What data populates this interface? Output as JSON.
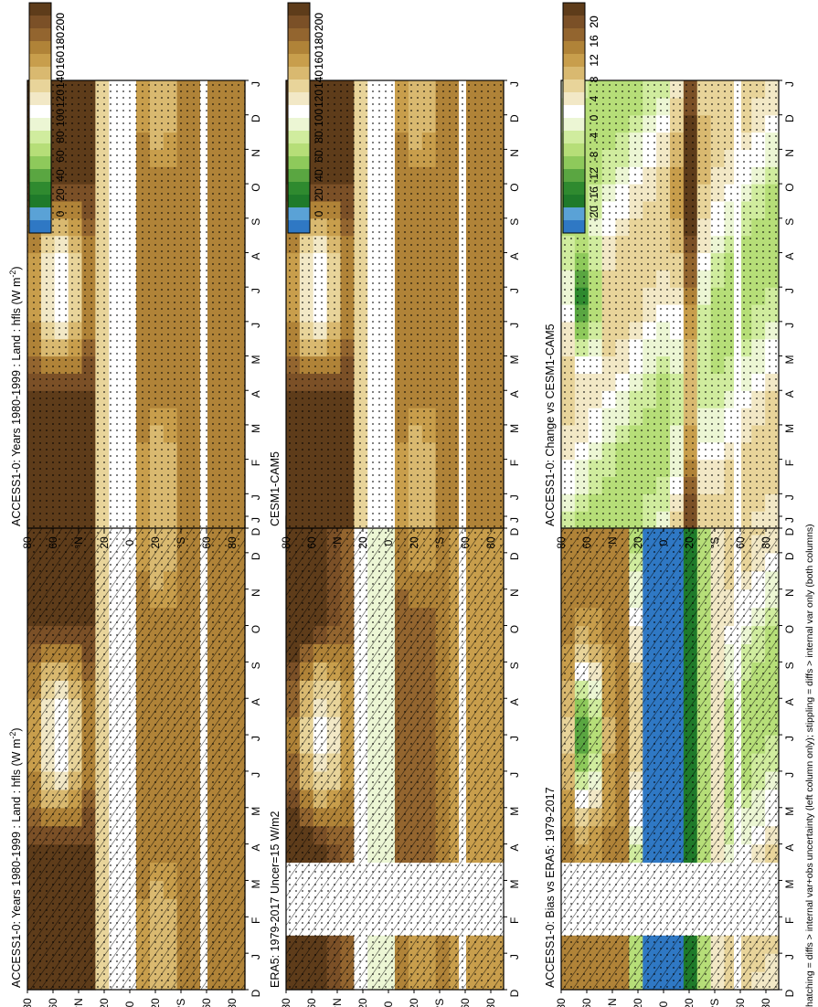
{
  "footnote": "hatching = diffs > internal var+obs uncertainty (left column only); stippling = diffs > internal var only (both columns)",
  "colors": {
    "absolute_scale": [
      "#5e3c1a",
      "#7b5027",
      "#93652f",
      "#b08338",
      "#c89e4c",
      "#d9b970",
      "#e8d49a",
      "#f2e8c6",
      "#ffffff",
      "#ecf6d4",
      "#d0ec9e",
      "#b6de78",
      "#8ec95b",
      "#5aa641",
      "#2f8a2f",
      "#1f7a2a",
      "#5aa2d6",
      "#2f78c4"
    ],
    "diff_scale": [
      "#5e3c1a",
      "#7b5027",
      "#93652f",
      "#b08338",
      "#c89e4c",
      "#d9b970",
      "#e8d49a",
      "#f2e8c6",
      "#ffffff",
      "#ecf6d4",
      "#d0ec9e",
      "#b6de78",
      "#8ec95b",
      "#5aa641",
      "#2f8a2f",
      "#1f7a2a",
      "#5aa2d6",
      "#2f78c4"
    ]
  },
  "chart_data": [
    {
      "type": "heatmap",
      "title": "ACCESS1-0: Years 1980-1999 : Land : hfls (W m",
      "title_sup": "-2",
      "title_end": ")",
      "x_ticks": [
        "D",
        "J",
        "F",
        "M",
        "A",
        "M",
        "J",
        "J",
        "A",
        "S",
        "O",
        "N",
        "D",
        "J"
      ],
      "y_ticks": [
        "80",
        "60",
        "°N",
        "20",
        "0",
        "20",
        "°S",
        "60",
        "80"
      ],
      "colorbar_ticks": [
        "200",
        "180",
        "160",
        "140",
        "120",
        "100",
        "80",
        "60",
        "40",
        "20",
        "0"
      ],
      "colorbar_range": [
        0,
        200
      ],
      "overlay": "hatching and stippling"
    },
    {
      "type": "heatmap",
      "title": "ACCESS1-0: Years 1980-1999 : Land : hfls (W m",
      "title_sup": "-2",
      "title_end": ")",
      "x_ticks": [
        "D",
        "J",
        "F",
        "M",
        "A",
        "M",
        "J",
        "J",
        "A",
        "S",
        "O",
        "N",
        "D",
        "J"
      ],
      "y_ticks": [
        "80",
        "60",
        "°N",
        "20",
        "0",
        "20",
        "°S",
        "60",
        "80"
      ],
      "colorbar_ticks": [
        "200",
        "180",
        "160",
        "140",
        "120",
        "100",
        "80",
        "60",
        "40",
        "20",
        "0"
      ],
      "colorbar_range": [
        0,
        200
      ],
      "overlay": "stippling"
    },
    {
      "type": "heatmap",
      "title": "ERA5: 1979-2017 Uncer=15 W/m2",
      "x_ticks": [
        "D",
        "J",
        "F",
        "M",
        "A",
        "M",
        "J",
        "J",
        "A",
        "S",
        "O",
        "N",
        "D",
        "J"
      ],
      "y_ticks": [
        "80",
        "60",
        "°N",
        "20",
        "0",
        "20",
        "°S",
        "60",
        "80"
      ],
      "colorbar_ticks": [
        "200",
        "180",
        "160",
        "140",
        "120",
        "100",
        "80",
        "60",
        "40",
        "20",
        "0"
      ],
      "colorbar_range": [
        0,
        200
      ],
      "overlay": "hatching and stippling"
    },
    {
      "type": "heatmap",
      "title": "CESM1-CAM5",
      "x_ticks": [
        "D",
        "J",
        "F",
        "M",
        "A",
        "M",
        "J",
        "J",
        "A",
        "S",
        "O",
        "N",
        "D",
        "J"
      ],
      "y_ticks": [
        "80",
        "60",
        "°N",
        "20",
        "0",
        "20",
        "°S",
        "60",
        "80"
      ],
      "colorbar_ticks": [
        "200",
        "180",
        "160",
        "140",
        "120",
        "100",
        "80",
        "60",
        "40",
        "20",
        "0"
      ],
      "colorbar_range": [
        0,
        200
      ],
      "overlay": "stippling"
    },
    {
      "type": "heatmap",
      "title": "ACCESS1-0: Bias vs ERA5: 1979-2017",
      "x_ticks": [
        "D",
        "J",
        "F",
        "M",
        "A",
        "M",
        "J",
        "J",
        "A",
        "S",
        "O",
        "N",
        "D",
        "J"
      ],
      "y_ticks": [
        "80",
        "60",
        "°N",
        "20",
        "0",
        "20",
        "°S",
        "60",
        "80"
      ],
      "colorbar_ticks": [
        "20",
        "16",
        "12",
        "8",
        "4",
        "0",
        "-4",
        "-8",
        "-12",
        "-16",
        "-20"
      ],
      "colorbar_range": [
        -20,
        20
      ],
      "overlay": "hatching and stippling"
    },
    {
      "type": "heatmap",
      "title": "ACCESS1-0: Change vs CESM1-CAM5",
      "x_ticks": [
        "D",
        "J",
        "F",
        "M",
        "A",
        "M",
        "J",
        "J",
        "A",
        "S",
        "O",
        "N",
        "D",
        "J"
      ],
      "y_ticks": [
        "80",
        "60",
        "°N",
        "20",
        "0",
        "20",
        "°S",
        "60",
        "80"
      ],
      "colorbar_ticks": [
        "20",
        "16",
        "12",
        "8",
        "4",
        "0",
        "-4",
        "-8",
        "-12",
        "-16",
        "-20"
      ],
      "colorbar_range": [
        -20,
        20
      ],
      "overlay": "stippling"
    }
  ]
}
